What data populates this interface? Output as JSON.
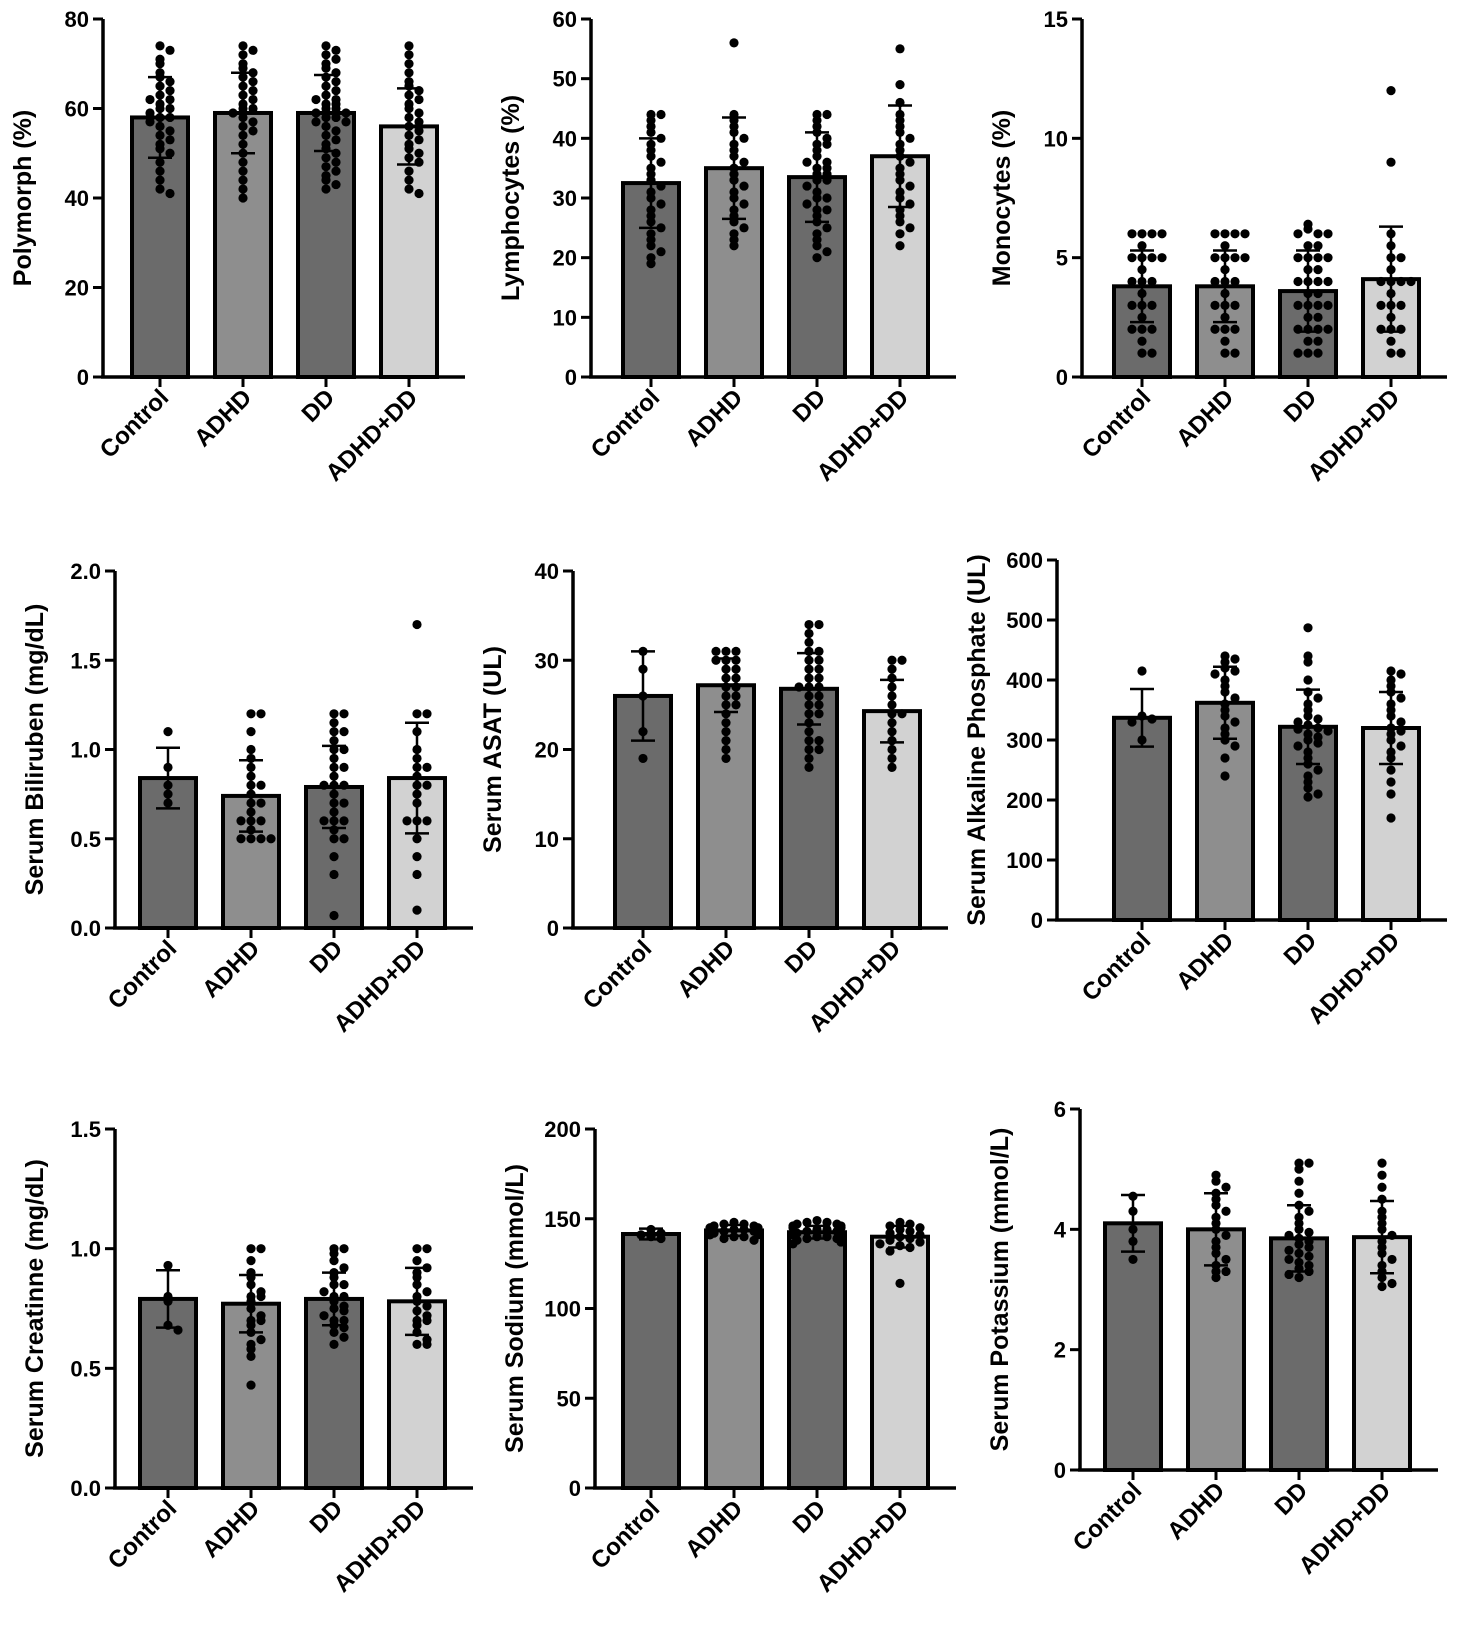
{
  "colors": {
    "Control": "#6b6b6b",
    "ADHD": "#8e8e8e",
    "DD": "#6b6b6b",
    "ADHD+DD": "#d2d2d2",
    "outline": "#000000",
    "dot": "#000000"
  },
  "chart_data": [
    {
      "type": "bar",
      "ylabel": "Polymorph (%)",
      "categories": [
        "Control",
        "ADHD",
        "DD",
        "ADHD+DD"
      ],
      "ylim": [
        0,
        80
      ],
      "yticks": [
        "0",
        "20",
        "40",
        "60",
        "80"
      ],
      "ytick_values": [
        0,
        20,
        40,
        60,
        80
      ],
      "values": [
        58,
        59,
        59,
        56
      ],
      "sd": [
        9,
        9,
        8.5,
        8.5
      ],
      "points": [
        [
          74,
          73,
          71,
          70,
          68,
          67,
          66,
          65,
          64,
          63,
          62,
          62,
          61,
          60,
          60,
          59,
          58,
          58,
          57,
          56,
          55,
          54,
          53,
          52,
          51,
          50,
          48,
          46,
          44,
          42,
          41
        ],
        [
          74,
          73,
          72,
          70,
          69,
          68,
          67,
          66,
          65,
          64,
          63,
          62,
          61,
          60,
          60,
          59,
          58,
          57,
          56,
          55,
          54,
          52,
          50,
          48,
          46,
          44,
          42,
          40
        ],
        [
          74,
          73,
          72,
          71,
          70,
          69,
          68,
          67,
          66,
          65,
          64,
          63,
          62,
          62,
          61,
          61,
          60,
          60,
          59,
          59,
          58,
          58,
          57,
          57,
          56,
          55,
          54,
          53,
          52,
          51,
          50,
          49,
          48,
          47,
          46,
          45,
          44,
          43,
          42
        ],
        [
          74,
          72,
          70,
          68,
          66,
          65,
          64,
          63,
          62,
          61,
          60,
          59,
          58,
          57,
          56,
          55,
          54,
          53,
          52,
          51,
          50,
          49,
          48,
          46,
          44,
          42,
          41
        ]
      ]
    },
    {
      "type": "bar",
      "ylabel": "Lymphocytes (%)",
      "categories": [
        "Control",
        "ADHD",
        "DD",
        "ADHD+DD"
      ],
      "ylim": [
        0,
        60
      ],
      "yticks": [
        "0",
        "10",
        "20",
        "30",
        "40",
        "50",
        "60"
      ],
      "ytick_values": [
        0,
        10,
        20,
        30,
        40,
        50,
        60
      ],
      "values": [
        32.5,
        35,
        33.5,
        37
      ],
      "sd": [
        7.5,
        8.5,
        7.5,
        8.5
      ],
      "points": [
        [
          44,
          44,
          43,
          42,
          41,
          40,
          39,
          38,
          37,
          36,
          35,
          34,
          33,
          32,
          31,
          30,
          29,
          28,
          27,
          26,
          25,
          24,
          23,
          22,
          21,
          20,
          19
        ],
        [
          56,
          44,
          43,
          42,
          41,
          40,
          39,
          38,
          37,
          36,
          35,
          34,
          33,
          32,
          31,
          30,
          29,
          28,
          27,
          26,
          25,
          24,
          23,
          22
        ],
        [
          44,
          44,
          43,
          42,
          41,
          40,
          39,
          39,
          38,
          37,
          36,
          36,
          35,
          35,
          34,
          34,
          33,
          33,
          32,
          31,
          30,
          30,
          29,
          28,
          28,
          27,
          26,
          25,
          24,
          23,
          22,
          21,
          20
        ],
        [
          55,
          49,
          46,
          44,
          43,
          42,
          41,
          40,
          39,
          38,
          37,
          36,
          35,
          34,
          33,
          32,
          31,
          30,
          29,
          28,
          27,
          26,
          25,
          24,
          22
        ]
      ]
    },
    {
      "type": "bar",
      "ylabel": "Monocytes (%)",
      "categories": [
        "Control",
        "ADHD",
        "DD",
        "ADHD+DD"
      ],
      "ylim": [
        0,
        15
      ],
      "yticks": [
        "0",
        "5",
        "10",
        "15"
      ],
      "ytick_values": [
        0,
        5,
        10,
        15
      ],
      "values": [
        3.8,
        3.8,
        3.6,
        4.1
      ],
      "sd": [
        1.5,
        1.5,
        1.7,
        2.2
      ],
      "points": [
        [
          6,
          6,
          6,
          6,
          5.5,
          5,
          5,
          5,
          5,
          4.5,
          4,
          4,
          4,
          3.5,
          3,
          3,
          3,
          2.5,
          2,
          2,
          2,
          1.5,
          1,
          1
        ],
        [
          6,
          6,
          6,
          6,
          5.5,
          5,
          5,
          5,
          5,
          4.5,
          4,
          4,
          4,
          3.5,
          3,
          3,
          3,
          2.5,
          2,
          2,
          2,
          1.5,
          1,
          1
        ],
        [
          6.4,
          6.2,
          6,
          6,
          6,
          5.5,
          5.5,
          5,
          5,
          5,
          5,
          4.5,
          4.5,
          4,
          4,
          4,
          4,
          3.5,
          3.5,
          3,
          3,
          3,
          3,
          2.5,
          2.5,
          2,
          2,
          2,
          2,
          1.5,
          1.5,
          1,
          1,
          1
        ],
        [
          12,
          9,
          6,
          5.5,
          5,
          5,
          4.5,
          4,
          4,
          4,
          4,
          3.5,
          3,
          3,
          3,
          2.5,
          2,
          2,
          2,
          1.5,
          1,
          1
        ]
      ]
    },
    {
      "type": "bar",
      "ylabel": "Serum Biliruben (mg/dL)",
      "categories": [
        "Control",
        "ADHD",
        "DD",
        "ADHD+DD"
      ],
      "ylim": [
        0,
        2
      ],
      "yticks": [
        "0.0",
        "0.5",
        "1.0",
        "1.5",
        "2.0"
      ],
      "ytick_values": [
        0,
        0.5,
        1,
        1.5,
        2
      ],
      "values": [
        0.84,
        0.74,
        0.79,
        0.84
      ],
      "sd": [
        0.17,
        0.2,
        0.23,
        0.31
      ],
      "points": [
        [
          1.1,
          0.9,
          0.8,
          0.75,
          0.7
        ],
        [
          1.2,
          1.2,
          1.1,
          1.0,
          0.95,
          0.9,
          0.85,
          0.8,
          0.8,
          0.75,
          0.7,
          0.7,
          0.65,
          0.6,
          0.6,
          0.6,
          0.55,
          0.5,
          0.5,
          0.5,
          0.5
        ],
        [
          1.2,
          1.2,
          1.15,
          1.1,
          1.1,
          1.05,
          1.0,
          1.0,
          0.95,
          0.9,
          0.9,
          0.85,
          0.8,
          0.8,
          0.8,
          0.75,
          0.7,
          0.7,
          0.65,
          0.6,
          0.6,
          0.6,
          0.55,
          0.5,
          0.5,
          0.4,
          0.3,
          0.07
        ],
        [
          1.7,
          1.2,
          1.2,
          1.1,
          1.0,
          0.95,
          0.9,
          0.9,
          0.85,
          0.8,
          0.8,
          0.75,
          0.7,
          0.6,
          0.6,
          0.6,
          0.5,
          0.4,
          0.3,
          0.1
        ]
      ]
    },
    {
      "type": "bar",
      "ylabel": "Serum ASAT (UL)",
      "categories": [
        "Control",
        "ADHD",
        "DD",
        "ADHD+DD"
      ],
      "ylim": [
        0,
        40
      ],
      "yticks": [
        "0",
        "10",
        "20",
        "30",
        "40"
      ],
      "ytick_values": [
        0,
        10,
        20,
        30,
        40
      ],
      "values": [
        26,
        27.2,
        26.8,
        24.3
      ],
      "sd": [
        5,
        3,
        4,
        3.5
      ],
      "points": [
        [
          31,
          29,
          26,
          22,
          19
        ],
        [
          31,
          31,
          31,
          30,
          30,
          30,
          29,
          29,
          28,
          28,
          27,
          27,
          26,
          26,
          25,
          25,
          24,
          23,
          22,
          21,
          20,
          19
        ],
        [
          34,
          34,
          33,
          32,
          31,
          31,
          30,
          30,
          29,
          29,
          28,
          28,
          27,
          27,
          27,
          26,
          26,
          25,
          25,
          24,
          24,
          23,
          22,
          21,
          21,
          20,
          20,
          19,
          18
        ],
        [
          30,
          30,
          29,
          28,
          27,
          26,
          25,
          24,
          24,
          23,
          22,
          21,
          20,
          19,
          18
        ]
      ]
    },
    {
      "type": "bar",
      "ylabel": "Serum Alkaline Phosphate (UL)",
      "categories": [
        "Control",
        "ADHD",
        "DD",
        "ADHD+DD"
      ],
      "ylim": [
        0,
        600
      ],
      "yticks": [
        "0",
        "100",
        "200",
        "300",
        "400",
        "500",
        "600"
      ],
      "ytick_values": [
        0,
        100,
        200,
        300,
        400,
        500,
        600
      ],
      "values": [
        337,
        362,
        322,
        320
      ],
      "sd": [
        48,
        60,
        62,
        60
      ],
      "points": [
        [
          415,
          340,
          335,
          330,
          300
        ],
        [
          440,
          435,
          430,
          420,
          415,
          410,
          400,
          390,
          380,
          370,
          360,
          350,
          340,
          330,
          320,
          310,
          300,
          290,
          270,
          240
        ],
        [
          487,
          440,
          430,
          400,
          380,
          370,
          360,
          350,
          340,
          335,
          330,
          325,
          320,
          318,
          315,
          310,
          305,
          300,
          295,
          290,
          280,
          270,
          260,
          250,
          240,
          230,
          220,
          210,
          205
        ],
        [
          415,
          410,
          400,
          390,
          380,
          370,
          360,
          350,
          340,
          330,
          320,
          315,
          310,
          300,
          290,
          280,
          270,
          250,
          230,
          210,
          170
        ]
      ]
    },
    {
      "type": "bar",
      "ylabel": "Serum Creatinne (mg/dL)",
      "categories": [
        "Control",
        "ADHD",
        "DD",
        "ADHD+DD"
      ],
      "ylim": [
        0,
        1.5
      ],
      "yticks": [
        "0.0",
        "0.5",
        "1.0",
        "1.5"
      ],
      "ytick_values": [
        0,
        0.5,
        1,
        1.5
      ],
      "values": [
        0.79,
        0.77,
        0.79,
        0.78
      ],
      "sd": [
        0.12,
        0.12,
        0.11,
        0.14
      ],
      "points": [
        [
          0.93,
          0.8,
          0.78,
          0.68,
          0.66
        ],
        [
          1.0,
          1.0,
          0.95,
          0.9,
          0.88,
          0.85,
          0.82,
          0.8,
          0.8,
          0.78,
          0.75,
          0.72,
          0.7,
          0.7,
          0.68,
          0.65,
          0.62,
          0.6,
          0.58,
          0.55,
          0.43
        ],
        [
          1.0,
          1.0,
          0.98,
          0.95,
          0.92,
          0.9,
          0.88,
          0.85,
          0.85,
          0.82,
          0.8,
          0.8,
          0.78,
          0.76,
          0.75,
          0.74,
          0.72,
          0.7,
          0.7,
          0.68,
          0.67,
          0.65,
          0.63,
          0.6
        ],
        [
          1.0,
          1.0,
          0.95,
          0.92,
          0.9,
          0.88,
          0.85,
          0.82,
          0.8,
          0.78,
          0.76,
          0.74,
          0.72,
          0.7,
          0.7,
          0.68,
          0.65,
          0.62,
          0.6,
          0.6
        ]
      ]
    },
    {
      "type": "bar",
      "ylabel": "Serum Sodium (mmol/L)",
      "categories": [
        "Control",
        "ADHD",
        "DD",
        "ADHD+DD"
      ],
      "ylim": [
        0,
        200
      ],
      "yticks": [
        "0",
        "50",
        "100",
        "150",
        "200"
      ],
      "ytick_values": [
        0,
        50,
        100,
        150,
        200
      ],
      "values": [
        141.5,
        143.5,
        142.5,
        140
      ],
      "sd": [
        3,
        3,
        3.5,
        6
      ],
      "points": [
        [
          144,
          142,
          141,
          140,
          139
        ],
        [
          148,
          147,
          147,
          146,
          146,
          145,
          145,
          144,
          144,
          143,
          143,
          142,
          142,
          141,
          141,
          140,
          140,
          139,
          138
        ],
        [
          149,
          148,
          148,
          147,
          147,
          146,
          146,
          145,
          145,
          144,
          144,
          143,
          143,
          142,
          142,
          141,
          141,
          140,
          140,
          139,
          139,
          138,
          137,
          136
        ],
        [
          148,
          147,
          146,
          145,
          144,
          143,
          142,
          141,
          140,
          139,
          138,
          137,
          136,
          135,
          134,
          132,
          114
        ]
      ]
    },
    {
      "type": "bar",
      "ylabel": "Serum Potassium (mmol/L)",
      "categories": [
        "Control",
        "ADHD",
        "DD",
        "ADHD+DD"
      ],
      "ylim": [
        0,
        6
      ],
      "yticks": [
        "0",
        "2",
        "4",
        "6"
      ],
      "ytick_values": [
        0,
        2,
        4,
        6
      ],
      "values": [
        4.1,
        4.0,
        3.85,
        3.87
      ],
      "sd": [
        0.47,
        0.6,
        0.55,
        0.6
      ],
      "points": [
        [
          4.55,
          4.3,
          4.0,
          3.8,
          3.5
        ],
        [
          4.9,
          4.8,
          4.7,
          4.6,
          4.5,
          4.4,
          4.3,
          4.2,
          4.1,
          4.0,
          3.9,
          3.8,
          3.7,
          3.6,
          3.5,
          3.4,
          3.3,
          3.3,
          3.2
        ],
        [
          5.1,
          5.1,
          5.0,
          4.8,
          4.6,
          4.4,
          4.3,
          4.2,
          4.1,
          4.0,
          3.95,
          3.9,
          3.85,
          3.8,
          3.75,
          3.7,
          3.65,
          3.6,
          3.55,
          3.5,
          3.45,
          3.4,
          3.35,
          3.3,
          3.25,
          3.2
        ],
        [
          5.1,
          4.9,
          4.7,
          4.5,
          4.3,
          4.2,
          4.1,
          4.0,
          3.9,
          3.8,
          3.7,
          3.6,
          3.5,
          3.4,
          3.3,
          3.2,
          3.1,
          3.05
        ]
      ]
    }
  ]
}
